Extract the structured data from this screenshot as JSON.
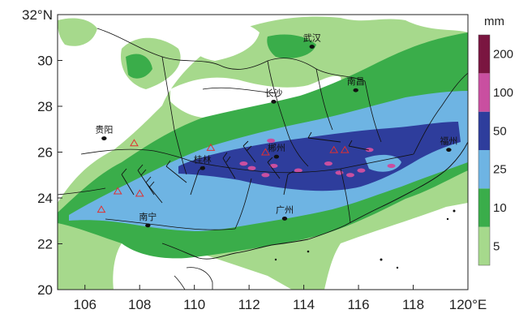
{
  "map": {
    "x_axis": {
      "range": [
        105,
        120
      ],
      "ticks": [
        106,
        108,
        110,
        112,
        114,
        116,
        118,
        120
      ],
      "tick_labels": [
        "106",
        "108",
        "110",
        "112",
        "114",
        "116",
        "118",
        "120°E"
      ]
    },
    "y_axis": {
      "range": [
        20,
        32
      ],
      "ticks": [
        20,
        22,
        24,
        26,
        28,
        30,
        32
      ],
      "tick_labels": [
        "20",
        "22",
        "24",
        "26",
        "28",
        "30",
        "32°N"
      ]
    },
    "colorbar": {
      "unit": "mm",
      "levels": [
        "5",
        "10",
        "25",
        "50",
        "100",
        "200"
      ],
      "colors": [
        "#a6d98c",
        "#3aad4a",
        "#6eb4e3",
        "#2e3d9c",
        "#c94fa0",
        "#7a1540"
      ]
    },
    "cities": [
      {
        "name": "武汉",
        "lon": 114.3,
        "lat": 30.6
      },
      {
        "name": "南昌",
        "lon": 115.9,
        "lat": 28.7
      },
      {
        "name": "长沙",
        "lon": 112.9,
        "lat": 28.2
      },
      {
        "name": "贵阳",
        "lon": 106.7,
        "lat": 26.6
      },
      {
        "name": "福州",
        "lon": 119.3,
        "lat": 26.1
      },
      {
        "name": "桂林",
        "lon": 110.3,
        "lat": 25.3
      },
      {
        "name": "郴州",
        "lon": 113.0,
        "lat": 25.8
      },
      {
        "name": "南宁",
        "lon": 108.3,
        "lat": 22.8
      },
      {
        "name": "广州",
        "lon": 113.3,
        "lat": 23.1
      }
    ],
    "stations": [
      {
        "lon": 107.8,
        "lat": 26.4
      },
      {
        "lon": 107.2,
        "lat": 24.3
      },
      {
        "lon": 106.6,
        "lat": 23.5
      },
      {
        "lon": 108.0,
        "lat": 24.2
      },
      {
        "lon": 110.6,
        "lat": 26.2
      },
      {
        "lon": 112.6,
        "lat": 26.0
      },
      {
        "lon": 115.1,
        "lat": 26.1
      },
      {
        "lon": 115.5,
        "lat": 26.1
      }
    ],
    "heavy_spots": [
      {
        "lon": 111.8,
        "lat": 25.5
      },
      {
        "lon": 112.1,
        "lat": 25.3
      },
      {
        "lon": 112.6,
        "lat": 25.0
      },
      {
        "lon": 112.9,
        "lat": 25.4
      },
      {
        "lon": 113.8,
        "lat": 25.2
      },
      {
        "lon": 114.9,
        "lat": 25.5
      },
      {
        "lon": 115.3,
        "lat": 25.1
      },
      {
        "lon": 115.7,
        "lat": 25.0
      },
      {
        "lon": 116.1,
        "lat": 25.2
      },
      {
        "lon": 116.4,
        "lat": 26.1
      },
      {
        "lon": 117.2,
        "lat": 25.4
      },
      {
        "lon": 112.8,
        "lat": 26.5
      }
    ]
  }
}
